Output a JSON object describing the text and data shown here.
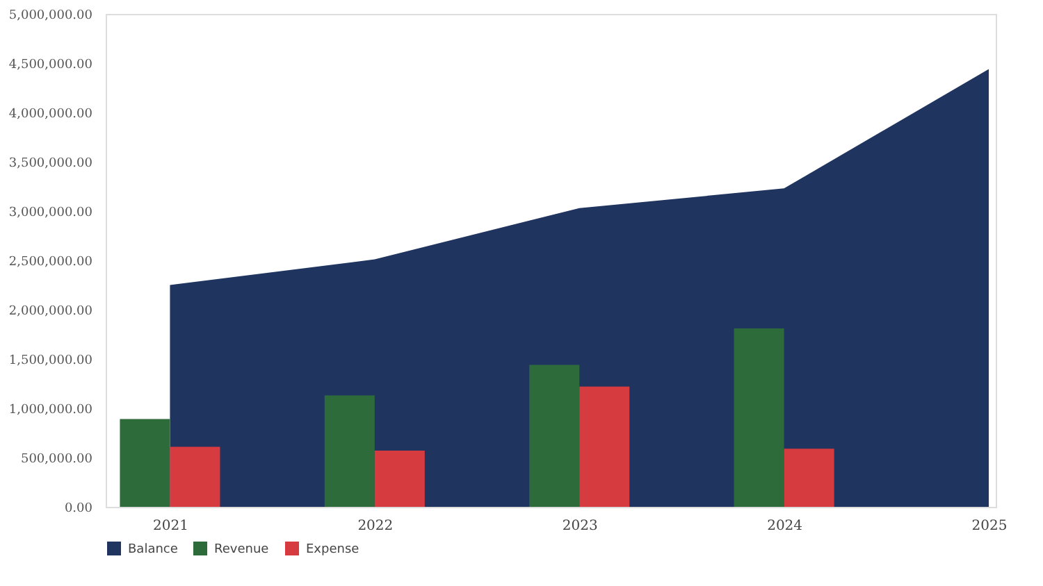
{
  "chart_data": {
    "type": "bar",
    "categories": [
      "2021",
      "2022",
      "2023",
      "2024",
      "2025"
    ],
    "series": [
      {
        "name": "Balance",
        "type": "area",
        "color": "#1f3560",
        "values": [
          2250000,
          2510000,
          3030000,
          3230000,
          4440000
        ]
      },
      {
        "name": "Revenue",
        "color": "#2e6b3a",
        "values": [
          890000,
          1130000,
          1440000,
          1810000,
          null
        ]
      },
      {
        "name": "Expense",
        "color": "#d63b3f",
        "values": [
          610000,
          570000,
          1220000,
          590000,
          null
        ]
      }
    ],
    "ylim": [
      0,
      5000000
    ],
    "yticks": [
      {
        "value": 0,
        "label": "0.00"
      },
      {
        "value": 500000,
        "label": "500,000.00"
      },
      {
        "value": 1000000,
        "label": "1,000,000.00"
      },
      {
        "value": 1500000,
        "label": "1,500,000.00"
      },
      {
        "value": 2000000,
        "label": "2,000,000.00"
      },
      {
        "value": 2500000,
        "label": "2,500,000.00"
      },
      {
        "value": 3000000,
        "label": "3,000,000.00"
      },
      {
        "value": 3500000,
        "label": "3,500,000.00"
      },
      {
        "value": 4000000,
        "label": "4,000,000.00"
      },
      {
        "value": 4500000,
        "label": "4,500,000.00"
      },
      {
        "value": 5000000,
        "label": "5,000,000.00"
      }
    ],
    "grid": false,
    "legend": "bottom"
  }
}
